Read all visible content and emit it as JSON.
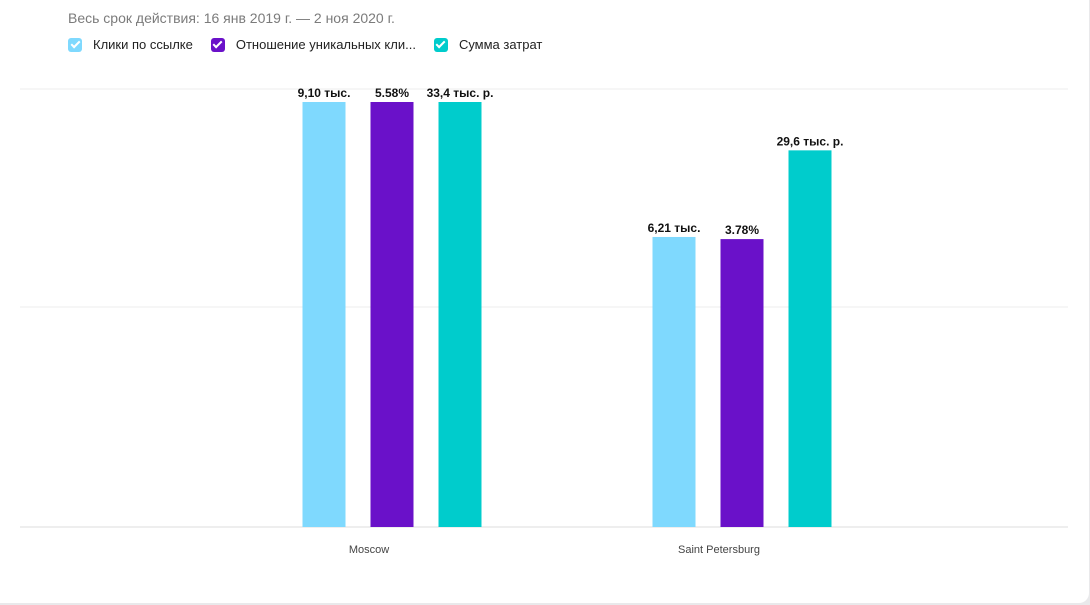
{
  "header": {
    "date_range": "Весь срок действия: 16 янв 2019 г. — 2 ноя 2020 г."
  },
  "legend": [
    {
      "label": "Клики по ссылке",
      "color": "#7fd9fe"
    },
    {
      "label": "Отношение уникальных кли...",
      "color": "#6a11c9"
    },
    {
      "label": "Сумма затрат",
      "color": "#00cccc"
    }
  ],
  "chart_data": {
    "type": "bar",
    "categories": [
      "Moscow",
      "Saint Petersburg"
    ],
    "series": [
      {
        "name": "Клики по ссылке",
        "color": "#7fd9fe",
        "values": [
          9100,
          6210
        ],
        "labels": [
          "9,10 тыс.",
          "6,21 тыс."
        ]
      },
      {
        "name": "Отношение уникальных кли...",
        "color": "#6a11c9",
        "values": [
          5.58,
          3.78
        ],
        "labels": [
          "5.58%",
          "3.78%"
        ]
      },
      {
        "name": "Сумма затрат",
        "color": "#00cccc",
        "values": [
          33400,
          29600
        ],
        "labels": [
          "33,4 тыс. р.",
          "29,6 тыс. р."
        ]
      }
    ],
    "grid": true,
    "legend_position": "top-left"
  }
}
